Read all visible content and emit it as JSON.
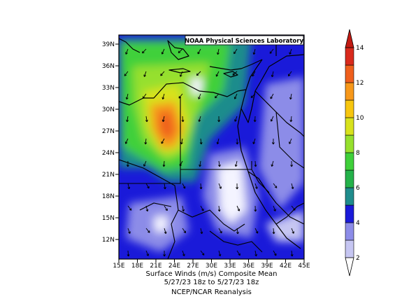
{
  "map": {
    "credit": "NOAA Physical Sciences Laboratory",
    "lat_labels": [
      "39N",
      "36N",
      "33N",
      "30N",
      "27N",
      "24N",
      "21N",
      "18N",
      "15N",
      "12N"
    ],
    "lon_labels": [
      "15E",
      "18E",
      "21E",
      "24E",
      "27E",
      "30E",
      "33E",
      "36E",
      "39E",
      "42E",
      "45E"
    ],
    "extent": {
      "lon": [
        15,
        45
      ],
      "lat": [
        10,
        40
      ]
    }
  },
  "colorbar": {
    "ticks": [
      "2",
      "4",
      "6",
      "8",
      "10",
      "12",
      "14"
    ],
    "colors": [
      "#c6c6f2",
      "#8c8ce8",
      "#1a1ad9",
      "#1f8c8c",
      "#24b24a",
      "#3fd03a",
      "#96e02d",
      "#d8e21c",
      "#f7c60f",
      "#f7981a",
      "#ef5f1c",
      "#d92a1c"
    ]
  },
  "caption": {
    "line1": "Surface Winds (m/s)     Composite Mean",
    "line2": "5/27/23 18z  to 5/27/23 18z",
    "line3": "NCEP/NCAR Reanalysis"
  }
}
